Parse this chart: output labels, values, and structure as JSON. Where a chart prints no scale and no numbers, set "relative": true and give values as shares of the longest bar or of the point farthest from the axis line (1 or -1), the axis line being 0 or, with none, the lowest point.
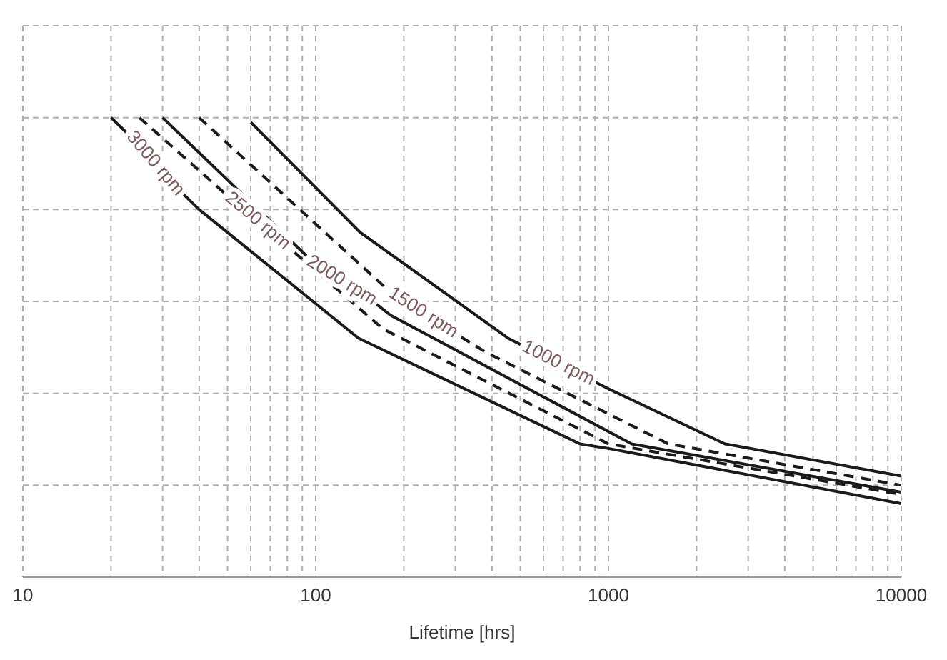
{
  "chart_data": {
    "type": "line",
    "xlabel": "Lifetime [hrs]",
    "relative": true,
    "log": "x",
    "xlim": [
      10,
      10000
    ],
    "xticks": [
      10,
      {
        "value": 20,
        "label": null
      },
      {
        "value": 30,
        "label": null
      },
      {
        "value": 40,
        "label": null
      },
      {
        "value": 50,
        "label": null
      },
      {
        "value": 60,
        "label": null
      },
      {
        "value": 70,
        "label": null
      },
      {
        "value": 80,
        "label": null
      },
      {
        "value": 90,
        "label": null
      },
      100,
      {
        "value": 200,
        "label": null
      },
      {
        "value": 300,
        "label": null
      },
      {
        "value": 400,
        "label": null
      },
      {
        "value": 500,
        "label": null
      },
      {
        "value": 600,
        "label": null
      },
      {
        "value": 700,
        "label": null
      },
      {
        "value": 800,
        "label": null
      },
      {
        "value": 900,
        "label": null
      },
      1000,
      {
        "value": 2000,
        "label": null
      },
      {
        "value": 3000,
        "label": null
      },
      {
        "value": 4000,
        "label": null
      },
      {
        "value": 5000,
        "label": null
      },
      {
        "value": 6000,
        "label": null
      },
      {
        "value": 7000,
        "label": null
      },
      {
        "value": 8000,
        "label": null
      },
      {
        "value": 9000,
        "label": null
      },
      10000
    ],
    "grid": true,
    "marker": "none",
    "series": [
      {
        "name": "3000 rpm",
        "color": "#1a1a1a",
        "line_style": "solid",
        "x": [
          20,
          25,
          32,
          40,
          140,
          800,
          1000,
          10000
        ],
        "values": [
          1,
          0.94,
          0.86,
          0.8,
          0.52,
          0.29,
          0.28,
          0.16
        ]
      },
      {
        "name": "2500 rpm",
        "color": "#1a1a1a",
        "line_style": "dashed",
        "x": [
          25,
          50,
          80,
          170,
          1000,
          10000
        ],
        "values": [
          1,
          0.83,
          0.72,
          0.54,
          0.29,
          0.18
        ]
      },
      {
        "name": "2000 rpm",
        "color": "#1a1a1a",
        "line_style": "solid",
        "x": [
          30,
          100,
          150,
          180,
          1200,
          10000
        ],
        "values": [
          1,
          0.68,
          0.61,
          0.57,
          0.29,
          0.185
        ]
      },
      {
        "name": "1500 rpm",
        "color": "#1a1a1a",
        "line_style": "dashed",
        "x": [
          40,
          180,
          300,
          380,
          1600,
          10000
        ],
        "values": [
          1,
          0.62,
          0.53,
          0.49,
          0.29,
          0.2
        ]
      },
      {
        "name": "1000 rpm",
        "color": "#1a1a1a",
        "line_style": "solid",
        "x": [
          60,
          142,
          454,
          1000,
          2500,
          10000
        ],
        "values": [
          0.99,
          0.75,
          0.52,
          0.41,
          0.29,
          0.22
        ]
      }
    ]
  }
}
